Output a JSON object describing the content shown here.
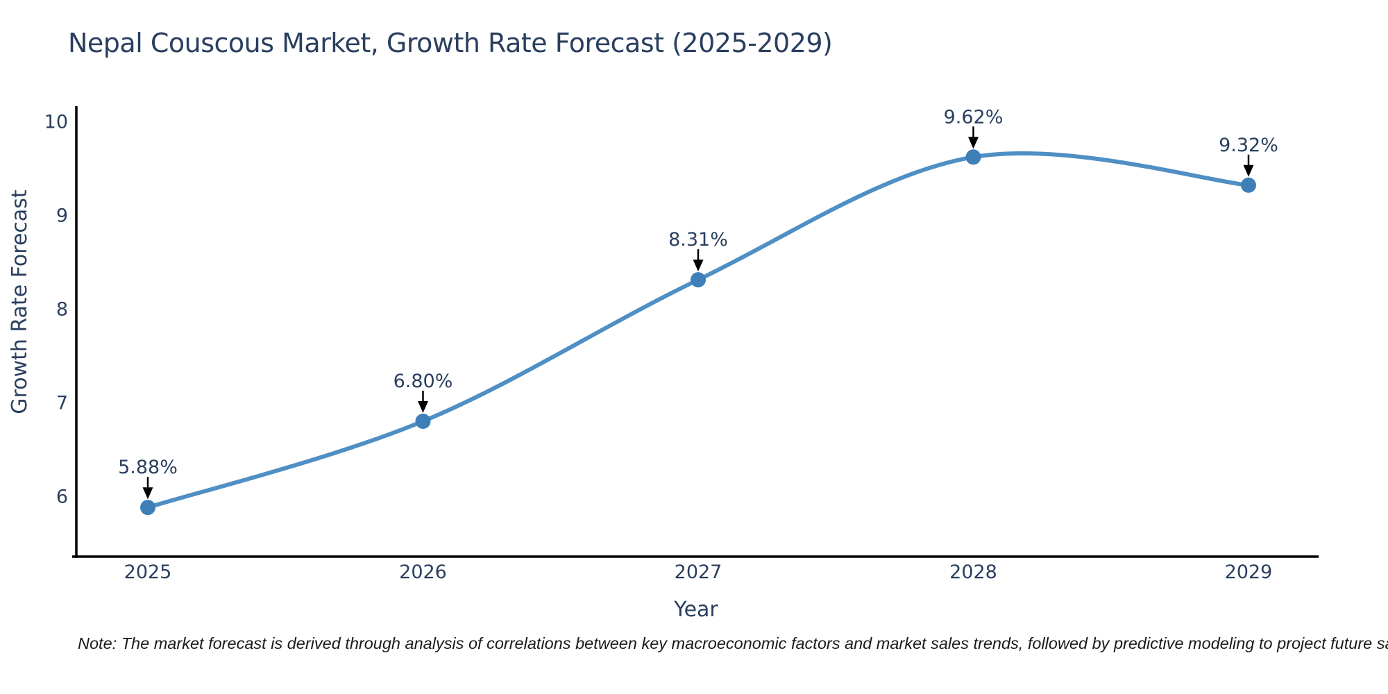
{
  "chart_data": {
    "type": "line",
    "title": "Nepal Couscous Market, Growth Rate Forecast (2025-2029)",
    "x": [
      2025,
      2026,
      2027,
      2028,
      2029
    ],
    "values": [
      5.88,
      6.8,
      8.31,
      9.62,
      9.32
    ],
    "point_labels": [
      "5.88%",
      "6.80%",
      "8.31%",
      "9.62%",
      "9.32%"
    ],
    "xlabel": "Year",
    "ylabel": "Growth Rate Forecast",
    "xticks": [
      "2025",
      "2026",
      "2027",
      "2028",
      "2029"
    ],
    "yticks": [
      "6",
      "7",
      "8",
      "9",
      "10"
    ],
    "ytick_values": [
      6,
      7,
      8,
      9,
      10
    ],
    "xtick_values": [
      2025,
      2026,
      2027,
      2028,
      2029
    ],
    "ylim": [
      5.36,
      10.16
    ],
    "xlim": [
      2024.72,
      2029.27
    ],
    "grid": false,
    "legend": false,
    "line_shape": "spline",
    "colors": {
      "line": "#4f8fc4",
      "marker": "#3e7fb7",
      "axis": "#000000",
      "text": "#2a3f5f",
      "annotation_arrow": "#000000"
    }
  },
  "footer": {
    "note": "Note: The market forecast is derived through analysis of correlations between key macroeconomic factors and market sales trends, followed by predictive modeling to project future sales."
  }
}
